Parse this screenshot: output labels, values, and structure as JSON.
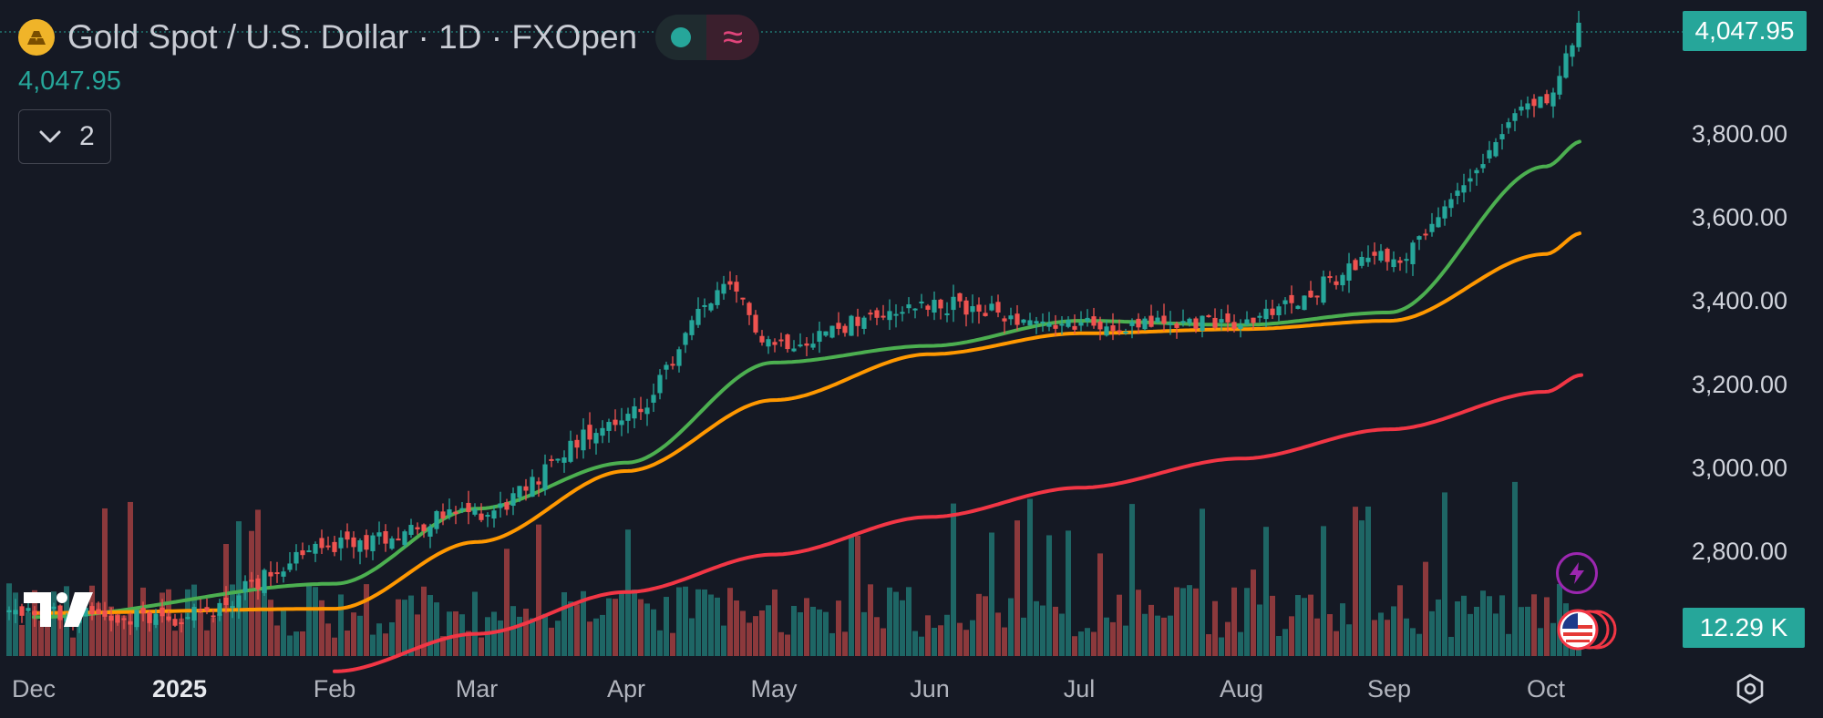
{
  "header": {
    "title": "Gold Spot / U.S. Dollar · 1D · FXOpen",
    "last_price": "4,047.95",
    "indicator_count": "2"
  },
  "price_axis": {
    "current_price_label": "4,047.95",
    "volume_label": "12.29 K"
  },
  "icons": {
    "symbol": "gold-bars-icon",
    "live_status": "green-dot-icon",
    "trend": "wavy-lines-icon",
    "collapse": "chevron-down-icon",
    "logo": "tradingview-logo",
    "flash": "lightning-icon",
    "events": "us-flag-icon",
    "settings": "settings-icon"
  },
  "colors": {
    "background": "#151924",
    "up": "#26a69a",
    "down": "#ef5350",
    "ma_fast": "#4caf50",
    "ma_mid": "#ff9800",
    "ma_slow": "#f23645"
  },
  "chart_data": {
    "type": "candlestick",
    "x_ticks": [
      "Dec",
      "2025",
      "Feb",
      "Mar",
      "Apr",
      "May",
      "Jun",
      "Jul",
      "Aug",
      "Sep",
      "Oct"
    ],
    "y_ticks": [
      "3,800.00",
      "3,600.00",
      "3,400.00",
      "3,200.00",
      "3,000.00",
      "2,800.00"
    ],
    "ylim": [
      2700,
      4070
    ],
    "close_anchors": [
      {
        "x": "Dec",
        "y": 2650
      },
      {
        "x": "2025",
        "y": 2640
      },
      {
        "x": "Feb",
        "y": 2810
      },
      {
        "x": "Mar",
        "y": 2890
      },
      {
        "x": "Apr",
        "y": 3120
      },
      {
        "x": "Apr/May",
        "y": 3420
      },
      {
        "x": "May",
        "y": 3300
      },
      {
        "x": "Jun",
        "y": 3390
      },
      {
        "x": "Jul",
        "y": 3340
      },
      {
        "x": "Aug",
        "y": 3350
      },
      {
        "x": "Sep",
        "y": 3500
      },
      {
        "x": "Oct",
        "y": 3880
      },
      {
        "x": "last",
        "y": 4047.95
      }
    ],
    "moving_averages": [
      {
        "color": "green",
        "anchors": [
          {
            "x": "Dec",
            "y": 2640
          },
          {
            "x": "Feb",
            "y": 2720
          },
          {
            "x": "Mar",
            "y": 2900
          },
          {
            "x": "Apr",
            "y": 3010
          },
          {
            "x": "May",
            "y": 3250
          },
          {
            "x": "Jun",
            "y": 3290
          },
          {
            "x": "Jul",
            "y": 3350
          },
          {
            "x": "Aug",
            "y": 3340
          },
          {
            "x": "Sep",
            "y": 3370
          },
          {
            "x": "Oct",
            "y": 3720
          },
          {
            "x": "last",
            "y": 3780
          }
        ]
      },
      {
        "color": "orange",
        "anchors": [
          {
            "x": "Dec",
            "y": 2650
          },
          {
            "x": "Feb",
            "y": 2660
          },
          {
            "x": "Mar",
            "y": 2820
          },
          {
            "x": "Apr",
            "y": 2990
          },
          {
            "x": "May",
            "y": 3160
          },
          {
            "x": "Jun",
            "y": 3270
          },
          {
            "x": "Jul",
            "y": 3320
          },
          {
            "x": "Aug",
            "y": 3330
          },
          {
            "x": "Sep",
            "y": 3350
          },
          {
            "x": "Oct",
            "y": 3510
          },
          {
            "x": "last",
            "y": 3560
          }
        ]
      },
      {
        "color": "red",
        "anchors": [
          {
            "x": "Feb",
            "y": 2510
          },
          {
            "x": "Mar",
            "y": 2600
          },
          {
            "x": "Apr",
            "y": 2700
          },
          {
            "x": "May",
            "y": 2790
          },
          {
            "x": "Jun",
            "y": 2880
          },
          {
            "x": "Jul",
            "y": 2950
          },
          {
            "x": "Aug",
            "y": 3020
          },
          {
            "x": "Sep",
            "y": 3090
          },
          {
            "x": "Oct",
            "y": 3180
          },
          {
            "x": "last",
            "y": 3220
          }
        ]
      }
    ],
    "volume_last": "12.29 K",
    "grid": false
  }
}
